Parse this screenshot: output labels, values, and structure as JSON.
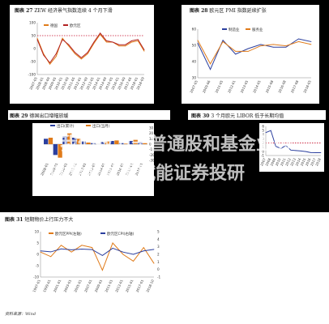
{
  "captions": {
    "c27": "图表 27",
    "c27_title": "ZEW 经济景气指数连续 4 个月下滑",
    "c28": "图表 28",
    "c28_title": "欧元区 PMI 指数延续扩张",
    "c29": "图表 29",
    "c29_title": "德国出口增幅放缓",
    "c30": "图表 30",
    "c30_title": "3 个月欧元 LIBOR 低于长期均值",
    "c31": "图表 31",
    "c31_title": "短期物价上行压力不大"
  },
  "footer": "资料来源：Wind",
  "overlay": {
    "line1": "我们致力于普通股和基金业务",
    "line2": "以专业数据赋能证券投研"
  },
  "colors": {
    "red": "#c8102e",
    "blue": "#2b3f9e",
    "orange": "#e07b1a",
    "darkred": "#b22222"
  },
  "chart_data": [
    {
      "id": "chart27",
      "type": "line",
      "legend": [
        "德国",
        "欧元区"
      ],
      "legend_position": "top",
      "x": [
        "2007-05",
        "2008-01",
        "2008-09",
        "2009-05",
        "2010-01",
        "2010-09",
        "2011-05",
        "2012-01",
        "2012-09",
        "2013-05",
        "2014-01",
        "2014-09",
        "2015-05",
        "2016-01",
        "2016-09",
        "2017-05",
        "2018-01",
        "2018-09"
      ],
      "ylim": [
        -100,
        100
      ],
      "yticks": [
        "100",
        "50",
        "0",
        "-50",
        "-100"
      ],
      "series": [
        {
          "name": "德国",
          "values": [
            40,
            -20,
            -60,
            -30,
            40,
            10,
            -20,
            -40,
            -20,
            20,
            55,
            25,
            25,
            10,
            10,
            25,
            30,
            -10
          ]
        },
        {
          "name": "欧元区",
          "values": [
            35,
            -25,
            -55,
            -20,
            35,
            15,
            -15,
            -35,
            -15,
            25,
            60,
            30,
            25,
            15,
            15,
            30,
            35,
            -5
          ]
        }
      ],
      "reference": 50
    },
    {
      "id": "chart28",
      "type": "line",
      "legend": [
        "制造业",
        "服务业"
      ],
      "legend_position": "top",
      "x": [
        "2007-05",
        "2009-06",
        "2011-05",
        "2012-01",
        "2013-05",
        "2014-05",
        "2015-08",
        "2016-08",
        "2017-08",
        "2018-05"
      ],
      "ylim": [
        30,
        65
      ],
      "yticks": [
        "60",
        "50",
        "40",
        "30"
      ],
      "series": [
        {
          "name": "制造业",
          "values": [
            55,
            36,
            57,
            47,
            51,
            54,
            52,
            52,
            58,
            56
          ]
        },
        {
          "name": "服务业",
          "values": [
            57,
            40,
            56,
            49,
            49,
            53,
            54,
            53,
            56,
            54
          ]
        }
      ]
    },
    {
      "id": "chart29",
      "type": "bar",
      "legend": [
        "出口(累计)",
        "出口(当月)"
      ],
      "legend_position": "top",
      "x": [
        "2008-01",
        "2009-01",
        "2010-01",
        "2011-01",
        "2012-01",
        "2013-01",
        "2014-01",
        "2015-01",
        "2016-01",
        "2017-01",
        "2018-01"
      ],
      "ylim": [
        -30,
        30
      ],
      "yticks": [
        "30",
        "20",
        "10",
        "0",
        "-10",
        "-20",
        "-30"
      ],
      "series": [
        {
          "name": "出口(累计)",
          "values": [
            10,
            -20,
            15,
            12,
            5,
            2,
            4,
            6,
            2,
            6,
            4
          ]
        },
        {
          "name": "出口(当月)",
          "values": [
            12,
            -25,
            20,
            10,
            3,
            0,
            5,
            7,
            1,
            8,
            3
          ]
        }
      ]
    },
    {
      "id": "chart30",
      "type": "line",
      "x": [
        "2007",
        "2008",
        "2009",
        "2010",
        "2011",
        "2012",
        "2013",
        "2014",
        "2015",
        "2016",
        "2017",
        "2018"
      ],
      "ylim": [
        -1,
        6
      ],
      "yticks": [
        "6",
        "5",
        "4",
        "3",
        "2",
        "1",
        "0",
        "-1"
      ],
      "series": [
        {
          "name": "3M LIBOR",
          "values": [
            4.5,
            5.0,
            1.2,
            0.7,
            1.4,
            0.3,
            0.2,
            0.1,
            -0.05,
            -0.3,
            -0.33,
            -0.32
          ]
        }
      ],
      "reference": 2.0
    },
    {
      "id": "chart31",
      "type": "line",
      "legend": [
        "欧元区PPI(左轴)",
        "欧元区CPI(右轴)"
      ],
      "legend_position": "top",
      "x": [
        "1997-01",
        "1999-01",
        "2001-01",
        "2003-01",
        "2005-01",
        "2007-01",
        "2009-01",
        "2011-01",
        "2013-01",
        "2015-01",
        "2017-01",
        "2018-10"
      ],
      "ylim": [
        -10,
        10
      ],
      "yticks": [
        "10",
        "5",
        "0",
        "-5",
        "-10"
      ],
      "y2ticks": [
        "5",
        "4",
        "3",
        "2",
        "1",
        "0",
        "-1"
      ],
      "series": [
        {
          "name": "欧元区PPI(左轴)",
          "values": [
            1,
            -1,
            4,
            1,
            4,
            3,
            -7,
            5,
            0,
            -3,
            3,
            -4
          ]
        },
        {
          "name": "欧元区CPI(右轴)",
          "values": [
            1.5,
            1.1,
            2.4,
            2.0,
            2.3,
            2.1,
            -0.5,
            2.7,
            1.0,
            0,
            1.5,
            2.2
          ]
        }
      ]
    }
  ]
}
